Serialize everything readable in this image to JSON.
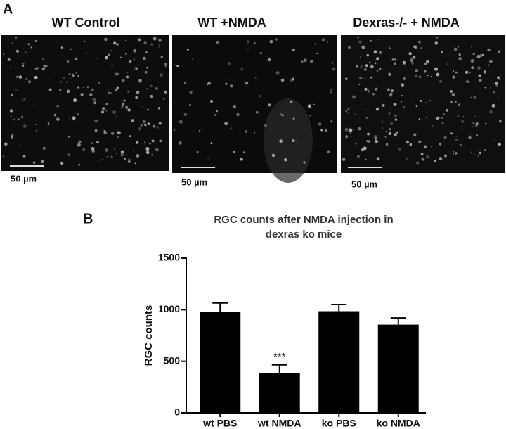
{
  "panel_labels": [
    "A",
    "B"
  ],
  "images": [
    {
      "title": "WT Control",
      "scale": "50 µm"
    },
    {
      "title": "WT +NMDA",
      "scale": "50 µm"
    },
    {
      "title": "Dexras-/- + NMDA",
      "scale": "50 µm"
    }
  ],
  "chart_data": {
    "type": "bar",
    "title": [
      "RGC counts after NMDA injection in",
      "dexras ko mice"
    ],
    "y_label": "RGC counts",
    "categories": [
      "wt PBS",
      "wt NMDA",
      "ko PBS",
      "ko NMDA"
    ],
    "series": [
      {
        "color": "#000000",
        "values": [
          980,
          385,
          985,
          855
        ],
        "errors": [
          85,
          80,
          65,
          65
        ]
      }
    ],
    "annotations": [
      {
        "category": "wt NMDA",
        "text": "***"
      }
    ],
    "ylim": [
      0,
      1500
    ],
    "yticks": [
      0,
      500,
      1000,
      1500
    ],
    "grid": false
  }
}
